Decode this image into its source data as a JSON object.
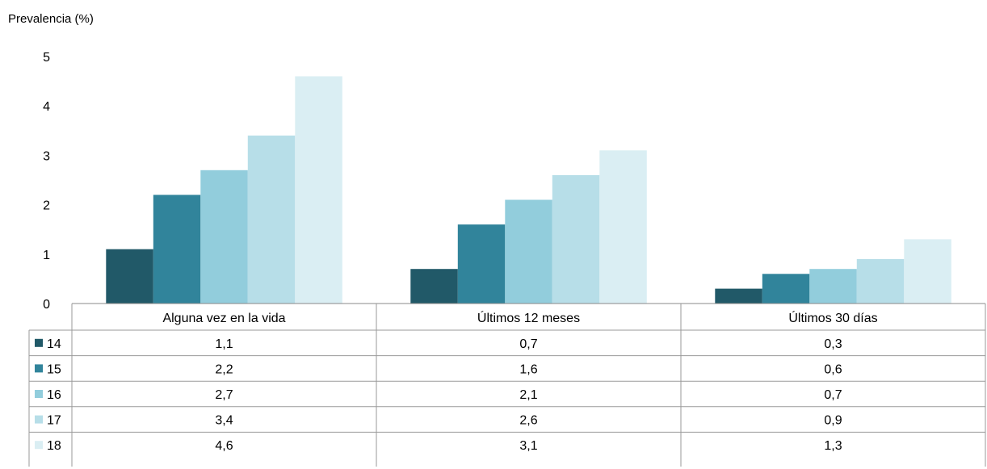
{
  "chart_data": {
    "type": "bar",
    "ylabel": "Prevalencia (%)",
    "ylim": [
      0,
      5
    ],
    "yticks": [
      "0",
      "1",
      "2",
      "3",
      "4",
      "5"
    ],
    "grid": false,
    "legend": "table-left",
    "categories": [
      "Alguna vez en la vida",
      "Últimos 12 meses",
      "Últimos 30 días"
    ],
    "series": [
      {
        "name": "14",
        "color": "#215968",
        "values": [
          1.1,
          0.7,
          0.3
        ],
        "labels": [
          "1,1",
          "0,7",
          "0,3"
        ]
      },
      {
        "name": "15",
        "color": "#31849B",
        "values": [
          2.2,
          1.6,
          0.6
        ],
        "labels": [
          "2,2",
          "1,6",
          "0,6"
        ]
      },
      {
        "name": "16",
        "color": "#92CDDC",
        "values": [
          2.7,
          2.1,
          0.7
        ],
        "labels": [
          "2,7",
          "2,1",
          "0,7"
        ]
      },
      {
        "name": "17",
        "color": "#B7DEE8",
        "values": [
          3.4,
          2.6,
          0.9
        ],
        "labels": [
          "3,4",
          "2,6",
          "0,9"
        ]
      },
      {
        "name": "18",
        "color": "#DAEEF3",
        "values": [
          4.6,
          3.1,
          1.3
        ],
        "labels": [
          "4,6",
          "3,1",
          "1,3"
        ]
      }
    ]
  }
}
